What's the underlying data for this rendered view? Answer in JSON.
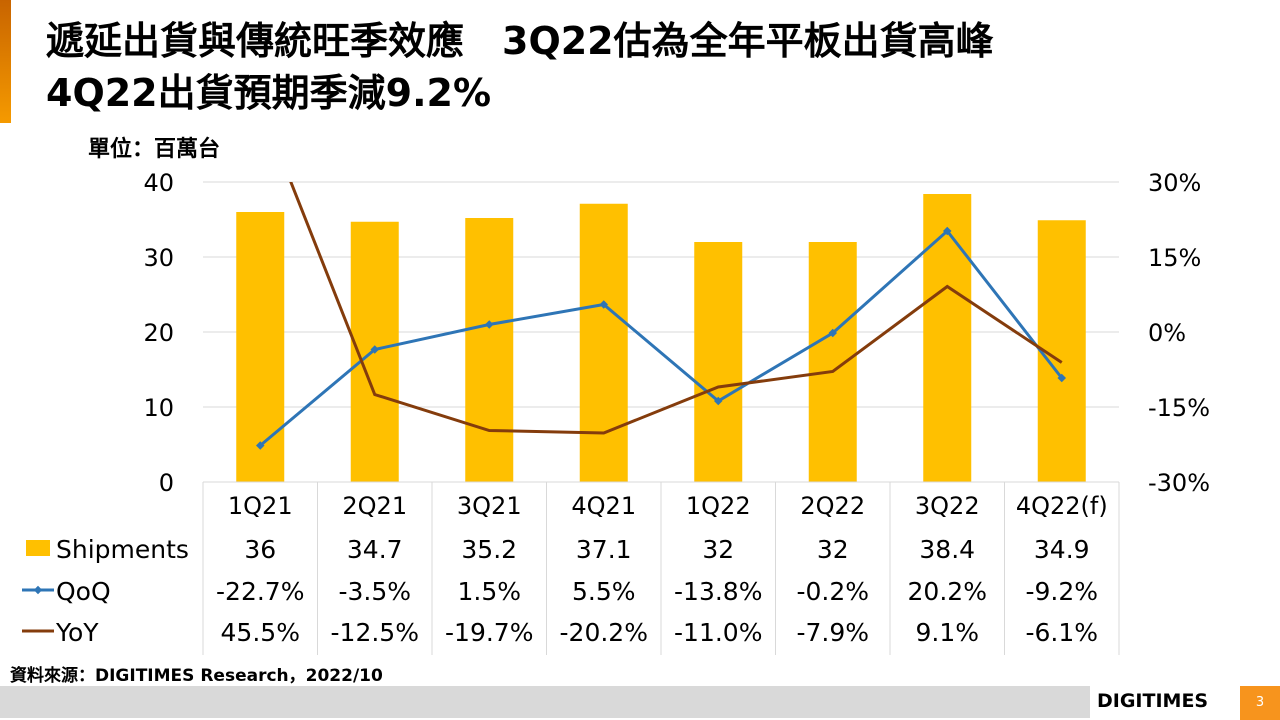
{
  "header": {
    "title_line1": "遞延出貨與傳統旺季效應　3Q22估為全年平板出貨高峰",
    "title_line2": "4Q22出貨預期季減9.2%"
  },
  "unit_label": "單位：百萬台",
  "source": "資料來源：DIGITIMES Research，2022/10",
  "footer": {
    "logo": "DIGITIMES",
    "page_number": "3"
  },
  "colors": {
    "bar": "#FFC000",
    "qoq": "#2E75B6",
    "yoy": "#843C0C",
    "accent": "#F7941D"
  },
  "chart_data": {
    "type": "bar+line",
    "categories": [
      "1Q21",
      "2Q21",
      "3Q21",
      "4Q21",
      "1Q22",
      "2Q22",
      "3Q22",
      "4Q22(f)"
    ],
    "series": [
      {
        "name": "Shipments",
        "type": "bar",
        "axis": "left",
        "values": [
          36,
          34.7,
          35.2,
          37.1,
          32,
          32,
          38.4,
          34.9
        ],
        "labels": [
          "36",
          "34.7",
          "35.2",
          "37.1",
          "32",
          "32",
          "38.4",
          "34.9"
        ]
      },
      {
        "name": "QoQ",
        "type": "line",
        "axis": "right",
        "values": [
          -22.7,
          -3.5,
          1.5,
          5.5,
          -13.8,
          -0.2,
          20.2,
          -9.2
        ],
        "labels": [
          "-22.7%",
          "-3.5%",
          "1.5%",
          "5.5%",
          "-13.8%",
          "-0.2%",
          "20.2%",
          "-9.2%"
        ]
      },
      {
        "name": "YoY",
        "type": "line",
        "axis": "right",
        "values": [
          45.5,
          -12.5,
          -19.7,
          -20.2,
          -11.0,
          -7.9,
          9.1,
          -6.1
        ],
        "labels": [
          "45.5%",
          "-12.5%",
          "-19.7%",
          "-20.2%",
          "-11.0%",
          "-7.9%",
          "9.1%",
          "-6.1%"
        ]
      }
    ],
    "ylim": [
      0,
      40
    ],
    "yticks": [
      "0",
      "10",
      "20",
      "30",
      "40"
    ],
    "y2lim": [
      -30,
      30
    ],
    "y2ticks": [
      "-30%",
      "-15%",
      "0%",
      "15%",
      "30%"
    ],
    "grid": true,
    "legend": "data-table"
  }
}
